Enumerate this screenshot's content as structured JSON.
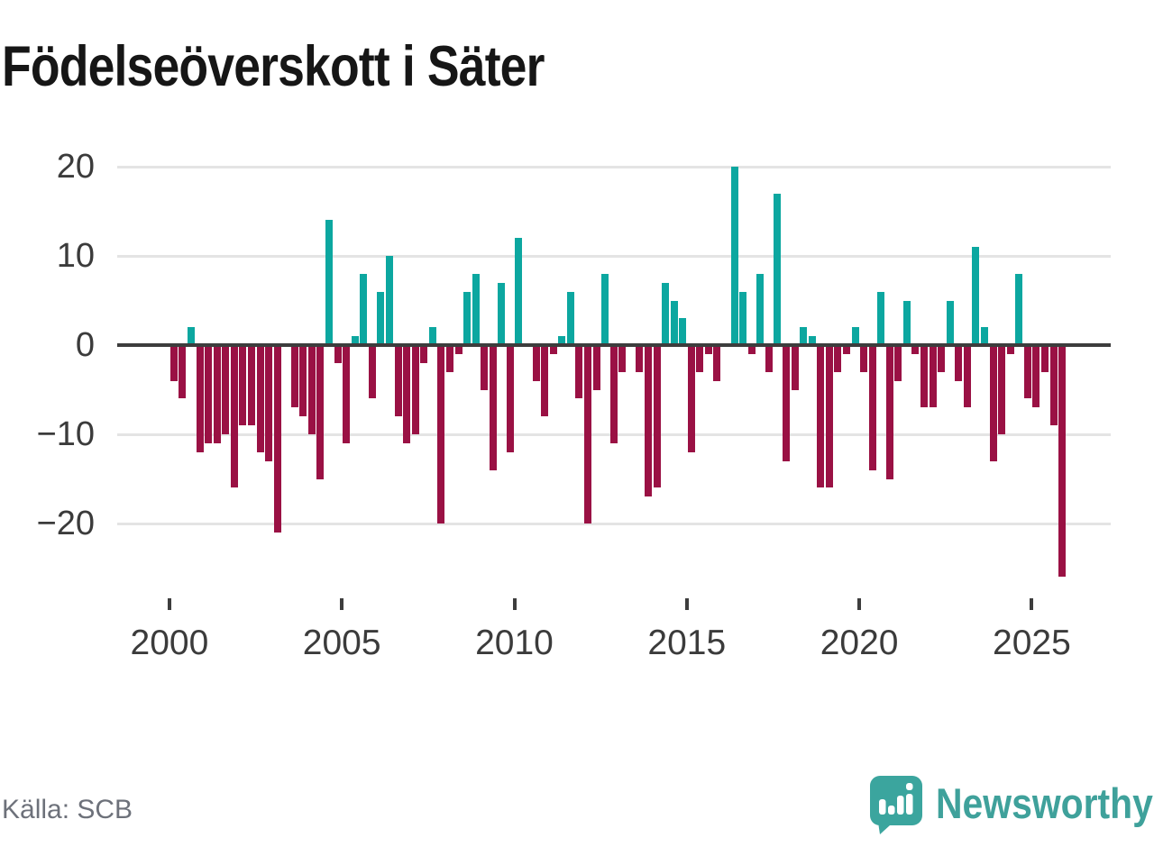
{
  "title": "Födelseöverskott i Säter",
  "source": {
    "text": "Källa: SCB"
  },
  "branding": {
    "logo_text": "Newsworthy",
    "logo_color": "#3ba59e",
    "logo_text_color": "#3fa19b"
  },
  "chart_data": {
    "type": "bar",
    "title": "Födelseöverskott i Säter",
    "xlabel": "",
    "ylabel": "",
    "frequency": "quarterly",
    "start_year": 2000,
    "end_year": 2025,
    "x_tick_years": [
      2000,
      2005,
      2010,
      2015,
      2020,
      2025
    ],
    "y_ticks": [
      {
        "value": 20,
        "label": "20"
      },
      {
        "value": 10,
        "label": "10"
      },
      {
        "value": 0,
        "label": "0"
      },
      {
        "value": -10,
        "label": "−10"
      },
      {
        "value": -20,
        "label": "−20"
      }
    ],
    "ylim": [
      -27,
      22
    ],
    "grid": true,
    "legend": "none",
    "colors": {
      "positive": "#0ca7a0",
      "negative": "#9a1144"
    },
    "values": [
      -4,
      -6,
      2,
      -12,
      -11,
      -11,
      -10,
      -16,
      -9,
      -9,
      -12,
      -13,
      -21,
      0,
      -7,
      -8,
      -10,
      -15,
      14,
      -2,
      -11,
      1,
      8,
      -6,
      6,
      10,
      -8,
      -11,
      -10,
      -2,
      2,
      -20,
      -3,
      -1,
      6,
      8,
      -5,
      -14,
      7,
      -12,
      12,
      0,
      -4,
      -8,
      -1,
      1,
      6,
      -6,
      -20,
      -5,
      8,
      -11,
      -3,
      0,
      -3,
      -17,
      -16,
      7,
      5,
      3,
      -12,
      -3,
      -1,
      -4,
      0,
      20,
      6,
      -1,
      8,
      -3,
      17,
      -13,
      -5,
      2,
      1,
      -16,
      -16,
      -3,
      -1,
      2,
      -3,
      -14,
      6,
      -15,
      -4,
      5,
      -1,
      -7,
      -7,
      -3,
      5,
      -4,
      -7,
      11,
      2,
      -13,
      -10,
      -1,
      8,
      -6,
      -7,
      -3,
      -9,
      -26
    ]
  }
}
